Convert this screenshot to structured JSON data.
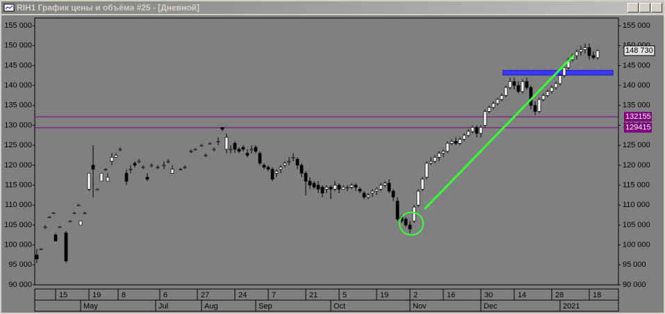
{
  "window_title": "RIH1 График цены и объёма #25 - [Дневной]",
  "chart_data": {
    "type": "candlestick",
    "xlim": [
      0,
      140
    ],
    "ylim": [
      90000,
      155000
    ],
    "yticks": [
      {
        "value": 90000,
        "label": "90 000"
      },
      {
        "value": 95000,
        "label": "95 000"
      },
      {
        "value": 100000,
        "label": "100 000"
      },
      {
        "value": 105000,
        "label": "105 000"
      },
      {
        "value": 110000,
        "label": "110 000"
      },
      {
        "value": 115000,
        "label": "115 000"
      },
      {
        "value": 120000,
        "label": "120 000"
      },
      {
        "value": 125000,
        "label": "125 000"
      },
      {
        "value": 130000,
        "label": "130 000"
      },
      {
        "value": 135000,
        "label": "135 000"
      },
      {
        "value": 140000,
        "label": "140 000"
      },
      {
        "value": 145000,
        "label": "145 000"
      },
      {
        "value": 150000,
        "label": "150 000"
      },
      {
        "value": 155000,
        "label": "155 000"
      }
    ],
    "xticks": [
      {
        "value": 5,
        "label": "15"
      },
      {
        "value": 13,
        "label": "19"
      },
      {
        "value": 20,
        "label": "8"
      },
      {
        "value": 30,
        "label": "6"
      },
      {
        "value": 39,
        "label": "27"
      },
      {
        "value": 48,
        "label": "24"
      },
      {
        "value": 56,
        "label": "7"
      },
      {
        "value": 65,
        "label": "21"
      },
      {
        "value": 73,
        "label": "5"
      },
      {
        "value": 82,
        "label": "19"
      },
      {
        "value": 90,
        "label": "2"
      },
      {
        "value": 98,
        "label": "16"
      },
      {
        "value": 107,
        "label": "30"
      },
      {
        "value": 115,
        "label": "14"
      },
      {
        "value": 124,
        "label": "28"
      },
      {
        "value": 133,
        "label": "18"
      }
    ],
    "month_ticks": [
      {
        "value": 11,
        "label": "May"
      },
      {
        "value": 29,
        "label": "Jul"
      },
      {
        "value": 40,
        "label": "Aug"
      },
      {
        "value": 53,
        "label": "Sep"
      },
      {
        "value": 71,
        "label": "Oct"
      },
      {
        "value": 90,
        "label": "Nov"
      },
      {
        "value": 107,
        "label": "Dec"
      },
      {
        "value": 126,
        "label": "2021"
      }
    ],
    "x": [
      0.5,
      1.5,
      2.5,
      3.5,
      4.5,
      5,
      6,
      7.5,
      8.5,
      9.5,
      10.5,
      11,
      12,
      13,
      14,
      15,
      16,
      17,
      17.5,
      18.5,
      19.5,
      20.5,
      22,
      23,
      24,
      25,
      26,
      27,
      28,
      29.5,
      31,
      32,
      33,
      35,
      36,
      37.5,
      38.5,
      40,
      41,
      42,
      43,
      44,
      45,
      46,
      47,
      48,
      49,
      50,
      51,
      52,
      53,
      54,
      55,
      56,
      57,
      58,
      59,
      60,
      61,
      62,
      63,
      64,
      65,
      66,
      67,
      68,
      69,
      70,
      71,
      72,
      73,
      74,
      75,
      76,
      77,
      78,
      79,
      80,
      81,
      82,
      83,
      84,
      85,
      86,
      87,
      88,
      89,
      90,
      91,
      92,
      93,
      94,
      95,
      96,
      97,
      98,
      99,
      100,
      101,
      102,
      103,
      104,
      105,
      106,
      107,
      108,
      109,
      110,
      111,
      112,
      113,
      114,
      115,
      116,
      117,
      118,
      119,
      120,
      121,
      122,
      123,
      124,
      125,
      126,
      127,
      128,
      129,
      130,
      131,
      132,
      133,
      134,
      135
    ],
    "open": [
      97500,
      99000,
      104500,
      107000,
      108000,
      102500,
      104500,
      103000,
      106000,
      108000,
      110000,
      105000,
      108000,
      114000,
      120000,
      114000,
      116000,
      119000,
      116000,
      121000,
      122000,
      124000,
      118000,
      119000,
      120500,
      121000,
      119500,
      117000,
      120000,
      119500,
      120000,
      121000,
      118000,
      119000,
      119500,
      123500,
      124000,
      125000,
      122500,
      125500,
      124000,
      126000,
      129500,
      124000,
      124000,
      125500,
      124000,
      124500,
      123000,
      124000,
      124500,
      123000,
      120000,
      119500,
      119000,
      118000,
      119000,
      120000,
      121000,
      122000,
      121500,
      120000,
      118000,
      116000,
      115500,
      115000,
      114500,
      114000,
      114500,
      114000,
      115000,
      114000,
      114500,
      114500,
      115000,
      114000,
      113000,
      112000,
      113000,
      113500,
      114000,
      115000,
      115500,
      113500,
      111000,
      107000,
      106500,
      105000,
      106000,
      110000,
      114000,
      117000,
      120500,
      121000,
      122000,
      123000,
      123500,
      125500,
      126000,
      125500,
      126500,
      127500,
      128500,
      129500,
      128000,
      130000,
      133500,
      134500,
      135500,
      136500,
      137500,
      139500,
      141000,
      140000,
      138500,
      141000,
      139500,
      135000,
      133500,
      136500,
      137500,
      138500,
      139500,
      140500,
      142500,
      144500,
      146500,
      147500,
      148500,
      149000,
      149500,
      147500,
      147000
    ],
    "high": [
      99000,
      99200,
      105000,
      107300,
      108200,
      103000,
      104700,
      103500,
      106200,
      108200,
      110300,
      106000,
      108300,
      118000,
      125000,
      114200,
      118000,
      119200,
      118000,
      123000,
      123000,
      124500,
      119000,
      120000,
      121000,
      121500,
      120000,
      118000,
      120500,
      120000,
      121000,
      121500,
      120000,
      119300,
      120000,
      124000,
      124300,
      125300,
      123000,
      125800,
      124500,
      127000,
      129500,
      128000,
      125000,
      126000,
      124500,
      125000,
      124000,
      125000,
      125000,
      123500,
      120500,
      120000,
      119500,
      119000,
      120000,
      121000,
      122000,
      123000,
      122000,
      120500,
      118500,
      117000,
      116000,
      116000,
      115000,
      115000,
      115000,
      116000,
      115500,
      115000,
      115000,
      115500,
      115500,
      114500,
      113500,
      113000,
      114000,
      114500,
      115500,
      116000,
      116500,
      114000,
      112000,
      107500,
      107000,
      106000,
      110000,
      114000,
      117000,
      121000,
      122000,
      122500,
      123500,
      124000,
      126000,
      126500,
      127000,
      127000,
      128000,
      129000,
      130000,
      130000,
      130000,
      134000,
      135000,
      136000,
      137000,
      138000,
      140000,
      142000,
      142000,
      141000,
      141500,
      142000,
      140000,
      136000,
      137000,
      138000,
      139000,
      140000,
      141000,
      143000,
      145000,
      147000,
      148000,
      149000,
      150000,
      150500,
      150500,
      148500,
      149000
    ],
    "low": [
      95500,
      98800,
      104000,
      106800,
      107800,
      101000,
      104300,
      95500,
      105800,
      107800,
      109800,
      105000,
      107800,
      113500,
      112000,
      113800,
      116000,
      118500,
      116000,
      120000,
      122000,
      123500,
      115000,
      118000,
      119500,
      120500,
      119000,
      116000,
      119500,
      119000,
      119000,
      120500,
      118000,
      118700,
      119000,
      123000,
      123700,
      124700,
      122000,
      125200,
      123500,
      125000,
      128500,
      123000,
      123000,
      123000,
      123000,
      123500,
      122000,
      123000,
      123000,
      120000,
      119000,
      118500,
      116000,
      117000,
      118000,
      119500,
      120000,
      121000,
      119000,
      117000,
      112500,
      114000,
      114000,
      113000,
      112000,
      113000,
      111500,
      113500,
      113000,
      114000,
      113500,
      114000,
      113500,
      113000,
      111500,
      111500,
      112000,
      112500,
      113500,
      114500,
      113000,
      111000,
      106000,
      105500,
      104500,
      103000,
      105500,
      109500,
      113500,
      116500,
      120000,
      120500,
      121000,
      122000,
      123000,
      125000,
      125000,
      125000,
      126000,
      127000,
      128000,
      127000,
      127000,
      129500,
      133000,
      134000,
      135000,
      136000,
      137000,
      139000,
      139000,
      138000,
      138000,
      139000,
      134000,
      132500,
      133000,
      136000,
      137000,
      138000,
      139000,
      140000,
      142000,
      144000,
      146000,
      146500,
      147500,
      148000,
      146500,
      146500,
      146500
    ],
    "close": [
      96500,
      99000,
      104500,
      107000,
      108000,
      101000,
      104500,
      96000,
      106000,
      108000,
      110000,
      106000,
      108000,
      118000,
      119000,
      114000,
      118000,
      119000,
      117000,
      122000,
      122500,
      124000,
      116000,
      119000,
      120000,
      121000,
      119500,
      116500,
      120000,
      119500,
      120000,
      121000,
      119000,
      119000,
      119500,
      123500,
      124000,
      125000,
      122500,
      125500,
      124000,
      126000,
      129000,
      127000,
      124000,
      124000,
      123500,
      124000,
      122500,
      124000,
      123500,
      120500,
      119500,
      119000,
      116500,
      118500,
      119500,
      120500,
      121000,
      122000,
      120000,
      118000,
      116000,
      115000,
      114500,
      114000,
      113000,
      114500,
      114000,
      115000,
      114000,
      114500,
      114500,
      115000,
      114500,
      113500,
      112000,
      112500,
      113500,
      114000,
      115000,
      115500,
      113500,
      112000,
      106500,
      106000,
      105000,
      104000,
      109500,
      113500,
      116500,
      120500,
      121000,
      122000,
      123000,
      123500,
      125500,
      126000,
      125500,
      126500,
      127500,
      128500,
      129500,
      128000,
      129500,
      133500,
      134500,
      135500,
      136500,
      137500,
      139500,
      141000,
      140000,
      138500,
      141000,
      139500,
      135000,
      133500,
      136500,
      137500,
      138500,
      139500,
      140500,
      142500,
      144500,
      146500,
      147500,
      148500,
      149000,
      149500,
      147500,
      147000,
      148730
    ],
    "up_color": "#ffffff",
    "down_color": "#000000",
    "levels": [
      132155,
      129415
    ],
    "level_color": "#800080",
    "last_price": {
      "value": 148730,
      "label": "148 730"
    },
    "zone": {
      "x": [
        112.3,
        138.7
      ],
      "y": [
        142600,
        143800
      ],
      "color": "#3a3aff"
    },
    "trendline": {
      "x": [
        93.5,
        129.3
      ],
      "y": [
        109000,
        147600
      ],
      "color": "#33ff33"
    },
    "ellipse": {
      "x": [
        87.5,
        93.2
      ],
      "y": [
        102500,
        108200
      ],
      "color": "#33ff33"
    }
  }
}
